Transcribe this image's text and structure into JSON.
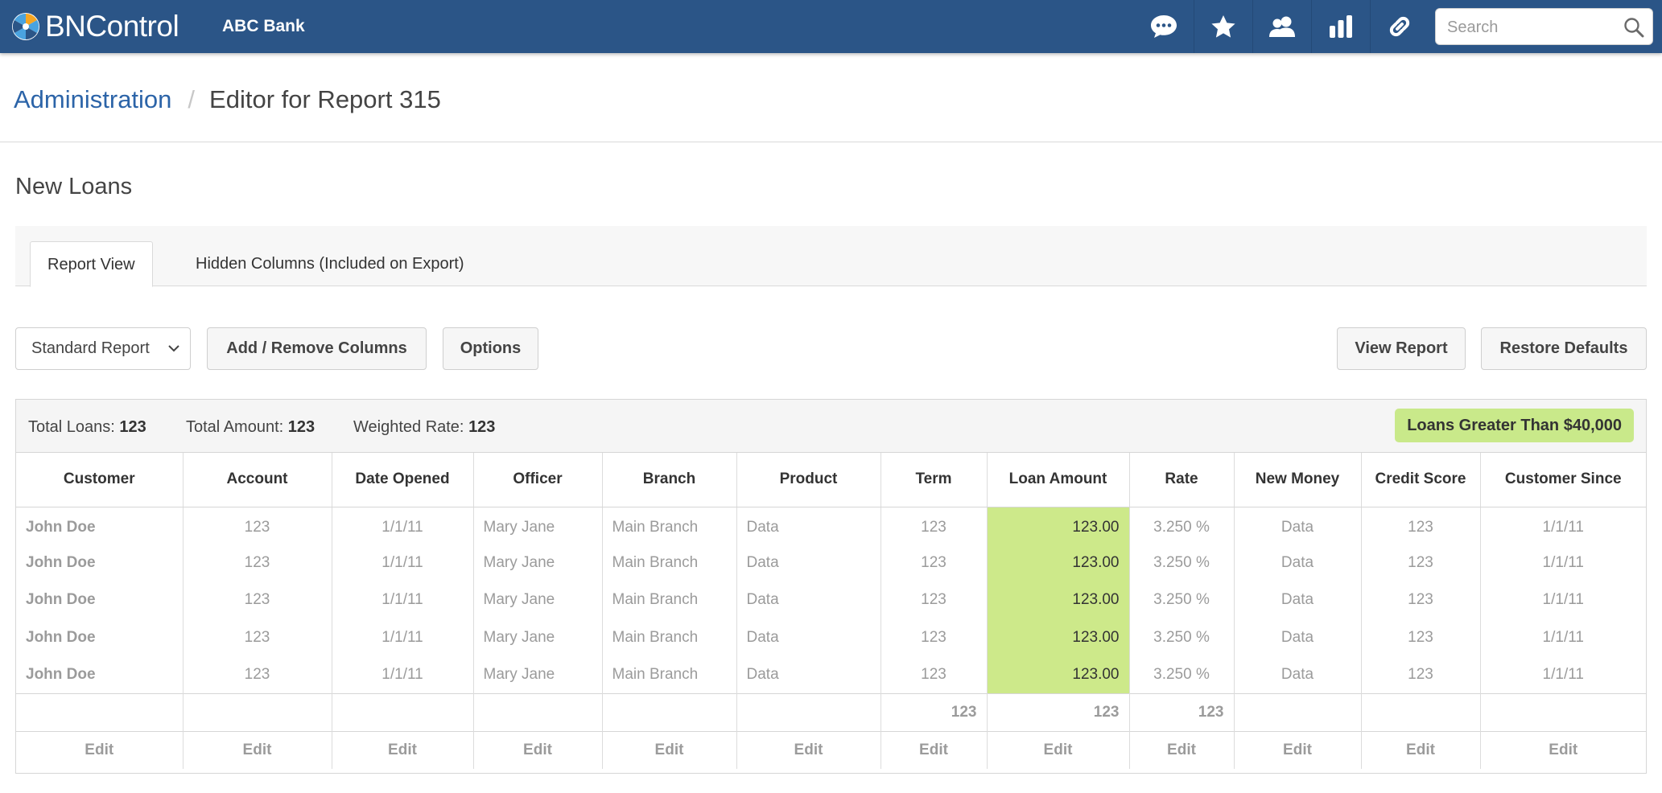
{
  "app": {
    "logo_text": "BNControl",
    "bank": "ABC Bank"
  },
  "nav": {
    "icons": [
      "chat-icon",
      "star-icon",
      "users-icon",
      "bar-chart-icon",
      "link-icon"
    ],
    "search_placeholder": "Search"
  },
  "breadcrumb": {
    "parent": "Administration",
    "separator": "/",
    "current": "Editor for Report 315"
  },
  "page": {
    "title": "New Loans"
  },
  "tabs": [
    {
      "label": "Report View",
      "active": true
    },
    {
      "label": "Hidden Columns (Included on Export)",
      "active": false
    }
  ],
  "toolbar": {
    "report_select": "Standard Report",
    "add_remove": "Add / Remove Columns",
    "options": "Options",
    "view_report": "View Report",
    "restore_defaults": "Restore Defaults"
  },
  "summary": {
    "total_loans_label": "Total Loans:",
    "total_loans": "123",
    "total_amount_label": "Total Amount:",
    "total_amount": "123",
    "weighted_rate_label": "Weighted Rate:",
    "weighted_rate": "123",
    "filter_badge": "Loans Greater Than $40,000"
  },
  "table": {
    "columns": [
      "Customer",
      "Account",
      "Date Opened",
      "Officer",
      "Branch",
      "Product",
      "Term",
      "Loan Amount",
      "Rate",
      "New Money",
      "Credit Score",
      "Customer Since"
    ],
    "rows": [
      [
        "John Doe",
        "123",
        "1/1/11",
        "Mary Jane",
        "Main Branch",
        "Data",
        "123",
        "123.00",
        "3.250 %",
        "Data",
        "123",
        "1/1/11"
      ],
      [
        "John Doe",
        "123",
        "1/1/11",
        "Mary Jane",
        "Main Branch",
        "Data",
        "123",
        "123.00",
        "3.250 %",
        "Data",
        "123",
        "1/1/11"
      ],
      [
        "John Doe",
        "123",
        "1/1/11",
        "Mary Jane",
        "Main Branch",
        "Data",
        "123",
        "123.00",
        "3.250 %",
        "Data",
        "123",
        "1/1/11"
      ],
      [
        "John Doe",
        "123",
        "1/1/11",
        "Mary Jane",
        "Main Branch",
        "Data",
        "123",
        "123.00",
        "3.250 %",
        "Data",
        "123",
        "1/1/11"
      ],
      [
        "John Doe",
        "123",
        "1/1/11",
        "Mary Jane",
        "Main Branch",
        "Data",
        "123",
        "123.00",
        "3.250 %",
        "Data",
        "123",
        "1/1/11"
      ]
    ],
    "totals": [
      "",
      "",
      "",
      "",
      "",
      "",
      "123",
      "123",
      "123",
      "",
      "",
      ""
    ],
    "edit_label": "Edit"
  },
  "colors": {
    "header": "#2b5587",
    "link": "#2c64a8",
    "highlight": "#cde98a"
  }
}
